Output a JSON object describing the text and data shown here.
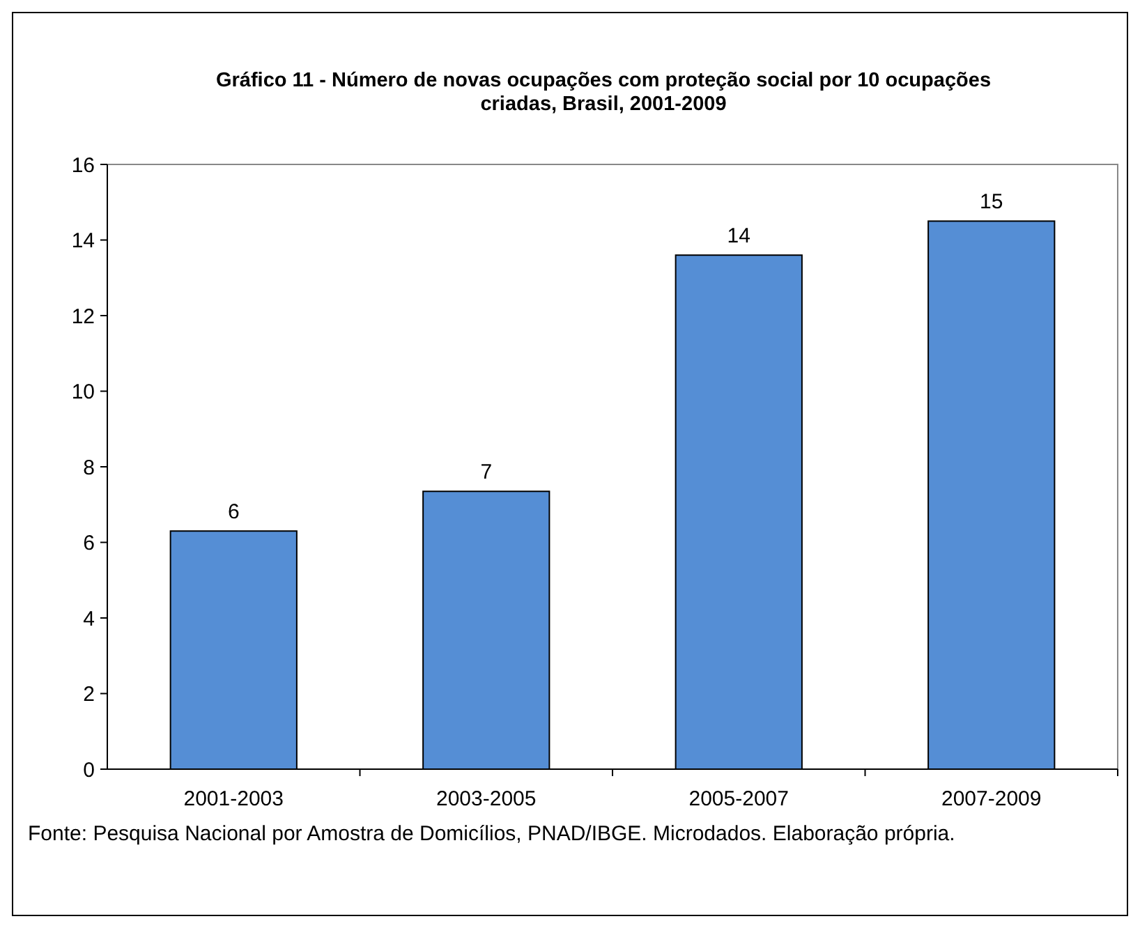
{
  "chart_data": {
    "type": "bar",
    "title": "Gráfico 11 -  Número de novas ocupações com proteção social por 10 ocupações criadas, Brasil, 2001-2009",
    "categories": [
      "2001-2003",
      "2003-2005",
      "2005-2007",
      "2007-2009"
    ],
    "values": [
      6.3,
      7.35,
      13.6,
      14.5
    ],
    "value_labels": [
      "6",
      "7",
      "14",
      "15"
    ],
    "color": "#558ed5",
    "ylim": [
      0,
      16
    ],
    "yticks": [
      0,
      2,
      4,
      6,
      8,
      10,
      12,
      14,
      16
    ],
    "grid": false,
    "annotations": [
      "Fonte: Pesquisa Nacional por Amostra de Domicílios, PNAD/IBGE. Microdados. Elaboração própria."
    ]
  }
}
